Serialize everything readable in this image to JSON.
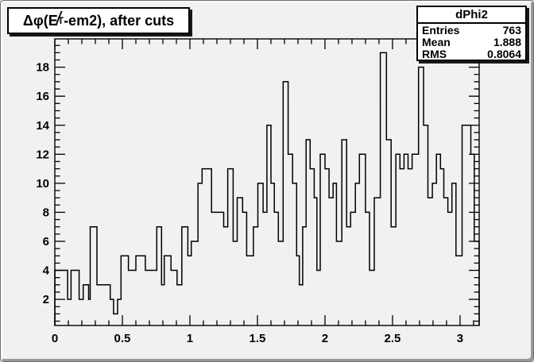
{
  "window": {
    "background": "#f1f1f1",
    "foreground": "#000000"
  },
  "title_box": {
    "prefix": "Δφ(",
    "met_symbol": "E",
    "met_subscript": "T",
    "suffix": "-em2), after cuts",
    "full_text": "Δφ(E̸T-em2), after cuts"
  },
  "stats_box": {
    "title": "dPhi2",
    "rows": [
      {
        "label": "Entries",
        "value": "763"
      },
      {
        "label": "Mean",
        "value": "1.888"
      },
      {
        "label": "RMS",
        "value": "0.8064"
      }
    ]
  },
  "chart_data": {
    "type": "bar",
    "subtype": "step-outline-histogram",
    "title": "Δφ(E̸T-em2), after cuts",
    "series_name": "dPhi2",
    "entries": 763,
    "mean": 1.888,
    "rms": 0.8064,
    "xlabel": "",
    "ylabel": "",
    "xlim": [
      0,
      3.1416
    ],
    "ylim": [
      0.2,
      19.95
    ],
    "x_major_ticks": [
      0,
      0.5,
      1,
      1.5,
      2,
      2.5,
      3
    ],
    "x_tick_labels": [
      "0",
      "0.5",
      "1",
      "1.5",
      "2",
      "2.5",
      "3"
    ],
    "x_minor_step": 0.1,
    "y_major_ticks": [
      2,
      4,
      6,
      8,
      10,
      12,
      14,
      16,
      18
    ],
    "y_tick_labels": [
      "2",
      "4",
      "6",
      "8",
      "10",
      "12",
      "14",
      "16",
      "18"
    ],
    "y_minor_step": 0.5,
    "grid": false,
    "legend": "none",
    "line_color": "#000000",
    "steps_format": "[x_start, count] ; each level holds until next x_start, last ends at xlim max",
    "steps": [
      [
        0.0,
        4
      ],
      [
        0.095,
        2
      ],
      [
        0.12,
        4
      ],
      [
        0.18,
        2
      ],
      [
        0.21,
        3
      ],
      [
        0.25,
        2
      ],
      [
        0.262,
        7
      ],
      [
        0.312,
        3
      ],
      [
        0.41,
        2
      ],
      [
        0.435,
        1
      ],
      [
        0.465,
        2
      ],
      [
        0.49,
        5
      ],
      [
        0.545,
        4
      ],
      [
        0.6,
        5
      ],
      [
        0.67,
        4
      ],
      [
        0.755,
        7
      ],
      [
        0.79,
        3
      ],
      [
        0.81,
        5
      ],
      [
        0.86,
        4
      ],
      [
        0.905,
        3
      ],
      [
        0.94,
        7
      ],
      [
        0.985,
        5
      ],
      [
        1.01,
        6
      ],
      [
        1.06,
        10
      ],
      [
        1.09,
        11
      ],
      [
        1.16,
        8
      ],
      [
        1.25,
        7
      ],
      [
        1.28,
        11
      ],
      [
        1.32,
        6
      ],
      [
        1.35,
        9
      ],
      [
        1.39,
        8
      ],
      [
        1.42,
        5
      ],
      [
        1.47,
        7
      ],
      [
        1.503,
        10
      ],
      [
        1.542,
        8
      ],
      [
        1.57,
        14
      ],
      [
        1.6,
        10
      ],
      [
        1.625,
        8
      ],
      [
        1.655,
        6
      ],
      [
        1.69,
        17
      ],
      [
        1.727,
        12
      ],
      [
        1.76,
        10
      ],
      [
        1.79,
        5
      ],
      [
        1.81,
        3
      ],
      [
        1.835,
        7
      ],
      [
        1.86,
        13
      ],
      [
        1.89,
        11
      ],
      [
        1.92,
        9
      ],
      [
        1.94,
        4
      ],
      [
        1.965,
        12
      ],
      [
        2.0,
        11
      ],
      [
        2.03,
        9
      ],
      [
        2.06,
        10
      ],
      [
        2.085,
        6
      ],
      [
        2.125,
        13
      ],
      [
        2.16,
        7
      ],
      [
        2.19,
        8
      ],
      [
        2.225,
        10
      ],
      [
        2.255,
        12
      ],
      [
        2.3,
        8
      ],
      [
        2.33,
        4
      ],
      [
        2.365,
        9
      ],
      [
        2.41,
        19
      ],
      [
        2.455,
        13
      ],
      [
        2.49,
        7
      ],
      [
        2.525,
        12
      ],
      [
        2.555,
        11
      ],
      [
        2.585,
        12
      ],
      [
        2.615,
        11
      ],
      [
        2.645,
        12
      ],
      [
        2.693,
        18
      ],
      [
        2.73,
        14
      ],
      [
        2.762,
        9
      ],
      [
        2.795,
        10
      ],
      [
        2.825,
        12
      ],
      [
        2.855,
        11
      ],
      [
        2.88,
        9
      ],
      [
        2.91,
        8
      ],
      [
        2.94,
        10
      ],
      [
        2.97,
        5
      ],
      [
        3.015,
        14
      ],
      [
        3.08,
        12
      ],
      [
        3.105,
        6
      ]
    ]
  }
}
